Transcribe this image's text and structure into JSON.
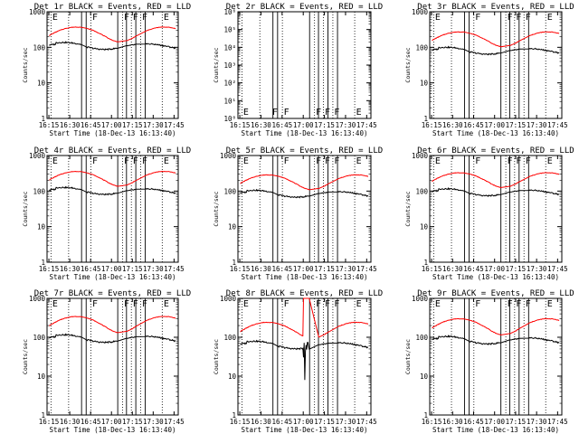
{
  "figure": {
    "colors": {
      "events": "#000000",
      "lld": "#ff0000",
      "background": "#ffffff",
      "axis": "#000000"
    },
    "flag_marker_color": "#000000"
  },
  "chart_data": [
    {
      "id": "1r",
      "type": "line",
      "title": "Det 1r BLACK = Events, RED = LLD",
      "ylabel": "Counts/sec",
      "xlabel": "Start Time (18-Dec-13 16:13:40)",
      "yscale": "log",
      "ylim": [
        1,
        1000
      ],
      "yticks": [
        "1",
        "10",
        "100",
        "1000"
      ],
      "xticks": [
        "16:15",
        "16:30",
        "16:45",
        "17:00",
        "17:15",
        "17:30",
        "17:45"
      ],
      "xlim_min": [
        13.67,
        108
      ],
      "dotted_x_min": [
        16.5,
        29.2,
        45.2,
        68,
        74.3,
        81,
        96.5
      ],
      "solid_x_min": [
        38.5,
        41.8,
        64.5,
        70.8,
        77.5,
        84.3
      ],
      "flags": [
        {
          "x": 16.5,
          "label": "E"
        },
        {
          "x": 45.2,
          "label": "F"
        },
        {
          "x": 68,
          "label": "F"
        },
        {
          "x": 74.3,
          "label": "F"
        },
        {
          "x": 81,
          "label": "F"
        },
        {
          "x": 96.5,
          "label": "E"
        }
      ],
      "series": [
        {
          "name": "Events",
          "color": "#000000",
          "profile": "events",
          "base": 130
        },
        {
          "name": "LLD",
          "color": "#ff0000",
          "profile": "lld",
          "base": 260
        }
      ]
    },
    {
      "id": "2r",
      "type": "line",
      "title": "Det 2r BLACK = Events, RED = LLD",
      "ylabel": "Counts/sec",
      "xlabel": "Start Time (18-Dec-13 16:13:40)",
      "yscale": "log",
      "ylim": [
        1,
        1000000
      ],
      "yticks": [
        "10⁰",
        "10¹",
        "10²",
        "10³",
        "10⁴",
        "10⁵",
        "10⁶"
      ],
      "xticks": [
        "16:15",
        "16:30",
        "16:45",
        "17:00",
        "17:15",
        "17:30",
        "17:45"
      ],
      "xlim_min": [
        13.67,
        108
      ],
      "dotted_x_min": [
        16.5,
        29.2,
        45.2,
        68,
        74.3,
        81,
        96.5
      ],
      "solid_x_min": [
        38.5,
        41.8,
        64.5,
        70.8,
        77.5,
        84.3
      ],
      "flags": [
        {
          "x": 16.5,
          "label": "E"
        },
        {
          "x": 37,
          "label": "F"
        },
        {
          "x": 45.2,
          "label": "F"
        },
        {
          "x": 68,
          "label": "F"
        },
        {
          "x": 74.3,
          "label": "F"
        },
        {
          "x": 81,
          "label": "F"
        },
        {
          "x": 96.5,
          "label": "E"
        }
      ],
      "series": []
    },
    {
      "id": "3r",
      "type": "line",
      "title": "Det 3r BLACK = Events, RED = LLD",
      "ylabel": "Counts/sec",
      "xlabel": "Start Time (18-Dec-13 16:13:40)",
      "yscale": "log",
      "ylim": [
        1,
        1000
      ],
      "yticks": [
        "1",
        "10",
        "100",
        "1000"
      ],
      "xticks": [
        "16:15",
        "16:30",
        "16:45",
        "17:00",
        "17:15",
        "17:30",
        "17:45"
      ],
      "xlim_min": [
        13.67,
        108
      ],
      "dotted_x_min": [
        16.5,
        29.2,
        45.2,
        68,
        74.3,
        81,
        96.5
      ],
      "solid_x_min": [
        38.5,
        41.8,
        64.5,
        70.8,
        77.5,
        84.3
      ],
      "flags": [
        {
          "x": 16.5,
          "label": "E"
        },
        {
          "x": 45.2,
          "label": "F"
        },
        {
          "x": 68,
          "label": "F"
        },
        {
          "x": 74.3,
          "label": "F"
        },
        {
          "x": 81,
          "label": "F"
        },
        {
          "x": 96.5,
          "label": "E"
        }
      ],
      "series": [
        {
          "name": "Events",
          "color": "#000000",
          "profile": "events",
          "base": 95
        },
        {
          "name": "LLD",
          "color": "#ff0000",
          "profile": "lld",
          "base": 190
        }
      ]
    },
    {
      "id": "4r",
      "type": "line",
      "title": "Det 4r BLACK = Events, RED = LLD",
      "ylabel": "Counts/sec",
      "xlabel": "Start Time (18-Dec-13 16:13:40)",
      "yscale": "log",
      "ylim": [
        1,
        1000
      ],
      "yticks": [
        "1",
        "10",
        "100",
        "1000"
      ],
      "xticks": [
        "16:15",
        "16:30",
        "16:45",
        "17:00",
        "17:15",
        "17:30",
        "17:45"
      ],
      "xlim_min": [
        13.67,
        108
      ],
      "dotted_x_min": [
        16.5,
        29.2,
        45.2,
        68,
        74.3,
        81,
        96.5
      ],
      "solid_x_min": [
        38.5,
        41.8,
        64.5,
        70.8,
        77.5,
        84.3
      ],
      "flags": [
        {
          "x": 16.5,
          "label": "E"
        },
        {
          "x": 45.2,
          "label": "F"
        },
        {
          "x": 68,
          "label": "F"
        },
        {
          "x": 74.3,
          "label": "F"
        },
        {
          "x": 81,
          "label": "F"
        },
        {
          "x": 96.5,
          "label": "E"
        }
      ],
      "series": [
        {
          "name": "Events",
          "color": "#000000",
          "profile": "events",
          "base": 120
        },
        {
          "name": "LLD",
          "color": "#ff0000",
          "profile": "lld",
          "base": 250
        }
      ]
    },
    {
      "id": "5r",
      "type": "line",
      "title": "Det 5r BLACK = Events, RED = LLD",
      "ylabel": "Counts/sec",
      "xlabel": "Start Time (18-Dec-13 16:13:40)",
      "yscale": "log",
      "ylim": [
        1,
        1000
      ],
      "yticks": [
        "1",
        "10",
        "100",
        "1000"
      ],
      "xticks": [
        "16:15",
        "16:30",
        "16:45",
        "17:00",
        "17:15",
        "17:30",
        "17:45"
      ],
      "xlim_min": [
        13.67,
        108
      ],
      "dotted_x_min": [
        16.5,
        29.2,
        45.2,
        68,
        74.3,
        81,
        96.5
      ],
      "solid_x_min": [
        38.5,
        41.8,
        64.5,
        70.8,
        77.5,
        84.3
      ],
      "flags": [
        {
          "x": 16.5,
          "label": "E"
        },
        {
          "x": 45.2,
          "label": "F"
        },
        {
          "x": 68,
          "label": "F"
        },
        {
          "x": 74.3,
          "label": "F"
        },
        {
          "x": 81,
          "label": "F"
        },
        {
          "x": 96.5,
          "label": "E"
        }
      ],
      "series": [
        {
          "name": "Events",
          "color": "#000000",
          "profile": "events",
          "base": 100
        },
        {
          "name": "LLD",
          "color": "#ff0000",
          "profile": "lld",
          "base": 200
        }
      ]
    },
    {
      "id": "6r",
      "type": "line",
      "title": "Det 6r BLACK = Events, RED = LLD",
      "ylabel": "Counts/sec",
      "xlabel": "Start Time (18-Dec-13 16:13:40)",
      "yscale": "log",
      "ylim": [
        1,
        1000
      ],
      "yticks": [
        "1",
        "10",
        "100",
        "1000"
      ],
      "xticks": [
        "16:15",
        "16:30",
        "16:45",
        "17:00",
        "17:15",
        "17:30",
        "17:45"
      ],
      "xlim_min": [
        13.67,
        108
      ],
      "dotted_x_min": [
        16.5,
        29.2,
        45.2,
        68,
        74.3,
        81,
        96.5
      ],
      "solid_x_min": [
        38.5,
        41.8,
        64.5,
        70.8,
        77.5,
        84.3
      ],
      "flags": [
        {
          "x": 16.5,
          "label": "E"
        },
        {
          "x": 45.2,
          "label": "F"
        },
        {
          "x": 68,
          "label": "F"
        },
        {
          "x": 74.3,
          "label": "F"
        },
        {
          "x": 81,
          "label": "F"
        },
        {
          "x": 96.5,
          "label": "E"
        }
      ],
      "series": [
        {
          "name": "Events",
          "color": "#000000",
          "profile": "events",
          "base": 110
        },
        {
          "name": "LLD",
          "color": "#ff0000",
          "profile": "lld",
          "base": 230
        }
      ]
    },
    {
      "id": "7r",
      "type": "line",
      "title": "Det 7r BLACK = Events, RED = LLD",
      "ylabel": "Counts/sec",
      "xlabel": "Start Time (18-Dec-13 16:13:40)",
      "yscale": "log",
      "ylim": [
        1,
        1000
      ],
      "yticks": [
        "1",
        "10",
        "100",
        "1000"
      ],
      "xticks": [
        "16:15",
        "16:30",
        "16:45",
        "17:00",
        "17:15",
        "17:30",
        "17:45"
      ],
      "xlim_min": [
        13.67,
        108
      ],
      "dotted_x_min": [
        16.5,
        29.2,
        45.2,
        68,
        74.3,
        81,
        96.5
      ],
      "solid_x_min": [
        38.5,
        41.8,
        64.5,
        70.8,
        77.5,
        84.3
      ],
      "flags": [
        {
          "x": 16.5,
          "label": "E"
        },
        {
          "x": 45.2,
          "label": "F"
        },
        {
          "x": 68,
          "label": "F"
        },
        {
          "x": 74.3,
          "label": "F"
        },
        {
          "x": 81,
          "label": "F"
        },
        {
          "x": 96.5,
          "label": "E"
        }
      ],
      "series": [
        {
          "name": "Events",
          "color": "#000000",
          "profile": "events",
          "base": 110
        },
        {
          "name": "LLD",
          "color": "#ff0000",
          "profile": "lld",
          "base": 240
        }
      ]
    },
    {
      "id": "8r",
      "type": "line",
      "title": "Det 8r BLACK = Events, RED = LLD",
      "ylabel": "Counts/sec",
      "xlabel": "Start Time (18-Dec-13 16:13:40)",
      "yscale": "log",
      "ylim": [
        1,
        1000
      ],
      "yticks": [
        "1",
        "10",
        "100",
        "1000"
      ],
      "xticks": [
        "16:15",
        "16:30",
        "16:45",
        "17:00",
        "17:15",
        "17:30",
        "17:45"
      ],
      "xlim_min": [
        13.67,
        108
      ],
      "dotted_x_min": [
        16.5,
        29.2,
        45.2,
        68,
        74.3,
        81,
        96.5
      ],
      "solid_x_min": [
        38.5,
        41.8,
        64.5,
        70.8,
        77.5,
        84.3
      ],
      "flags": [
        {
          "x": 16.5,
          "label": "E"
        },
        {
          "x": 45.2,
          "label": "F"
        },
        {
          "x": 68,
          "label": "F"
        },
        {
          "x": 74.3,
          "label": "F"
        },
        {
          "x": 81,
          "label": "F"
        },
        {
          "x": 96.5,
          "label": "E"
        }
      ],
      "series": [
        {
          "name": "Events",
          "color": "#000000",
          "profile": "events8",
          "base": 75
        },
        {
          "name": "LLD",
          "color": "#ff0000",
          "profile": "lld8",
          "base": 170
        }
      ]
    },
    {
      "id": "9r",
      "type": "line",
      "title": "Det 9r BLACK = Events, RED = LLD",
      "ylabel": "Counts/sec",
      "xlabel": "Start Time (18-Dec-13 16:13:40)",
      "yscale": "log",
      "ylim": [
        1,
        1000
      ],
      "yticks": [
        "1",
        "10",
        "100",
        "1000"
      ],
      "xticks": [
        "16:15",
        "16:30",
        "16:45",
        "17:00",
        "17:15",
        "17:30",
        "17:45"
      ],
      "xlim_min": [
        13.67,
        108
      ],
      "dotted_x_min": [
        16.5,
        29.2,
        45.2,
        68,
        74.3,
        81,
        96.5
      ],
      "solid_x_min": [
        38.5,
        41.8,
        64.5,
        70.8,
        77.5,
        84.3
      ],
      "flags": [
        {
          "x": 16.5,
          "label": "E"
        },
        {
          "x": 45.2,
          "label": "F"
        },
        {
          "x": 68,
          "label": "F"
        },
        {
          "x": 74.3,
          "label": "F"
        },
        {
          "x": 81,
          "label": "F"
        },
        {
          "x": 96.5,
          "label": "E"
        }
      ],
      "series": [
        {
          "name": "Events",
          "color": "#000000",
          "profile": "events",
          "base": 100
        },
        {
          "name": "LLD",
          "color": "#ff0000",
          "profile": "lld",
          "base": 210
        }
      ]
    }
  ]
}
